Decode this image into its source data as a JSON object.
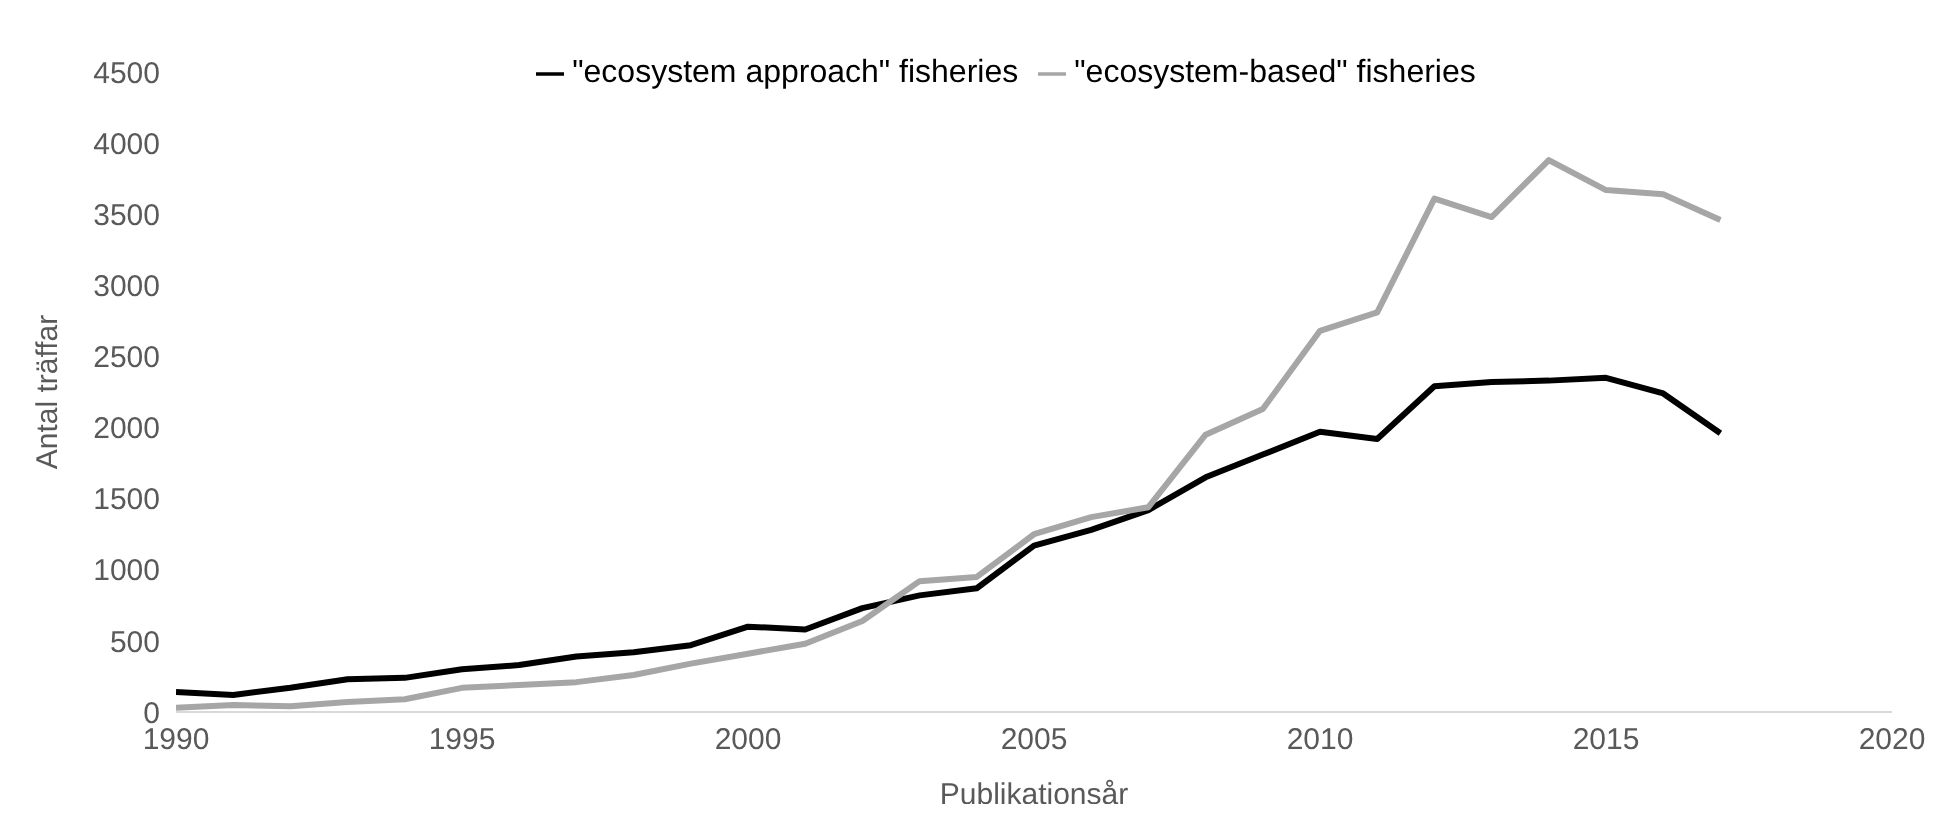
{
  "chart_data": {
    "type": "line",
    "xlabel": "Publikationsår",
    "ylabel": "Antal träffar",
    "x": [
      1990,
      1991,
      1992,
      1993,
      1994,
      1995,
      1996,
      1997,
      1998,
      1999,
      2000,
      2001,
      2002,
      2003,
      2004,
      2005,
      2006,
      2007,
      2008,
      2009,
      2010,
      2011,
      2012,
      2013,
      2014,
      2015,
      2016,
      2017
    ],
    "series": [
      {
        "name": "\"ecosystem approach\" fisheries",
        "color": "#000000",
        "values": [
          140,
          120,
          170,
          230,
          240,
          300,
          330,
          390,
          420,
          470,
          600,
          580,
          730,
          820,
          870,
          1170,
          1280,
          1420,
          1650,
          1810,
          1970,
          1920,
          2290,
          2320,
          2330,
          2350,
          2240,
          1960
        ]
      },
      {
        "name": "\"ecosystem-based\" fisheries",
        "color": "#a6a6a6",
        "values": [
          30,
          50,
          40,
          70,
          90,
          170,
          190,
          210,
          260,
          340,
          410,
          480,
          640,
          920,
          950,
          1250,
          1370,
          1440,
          1950,
          2130,
          2680,
          2810,
          3610,
          3480,
          3880,
          3670,
          3640,
          3460
        ]
      }
    ],
    "xlim": [
      1990,
      2020
    ],
    "xticks": [
      1990,
      1995,
      2000,
      2005,
      2010,
      2015,
      2020
    ],
    "ylim": [
      0,
      4500
    ],
    "yticks": [
      0,
      500,
      1000,
      1500,
      2000,
      2500,
      3000,
      3500,
      4000,
      4500
    ],
    "grid": false,
    "legend": "top",
    "marker": "none",
    "line_style": "solid"
  }
}
